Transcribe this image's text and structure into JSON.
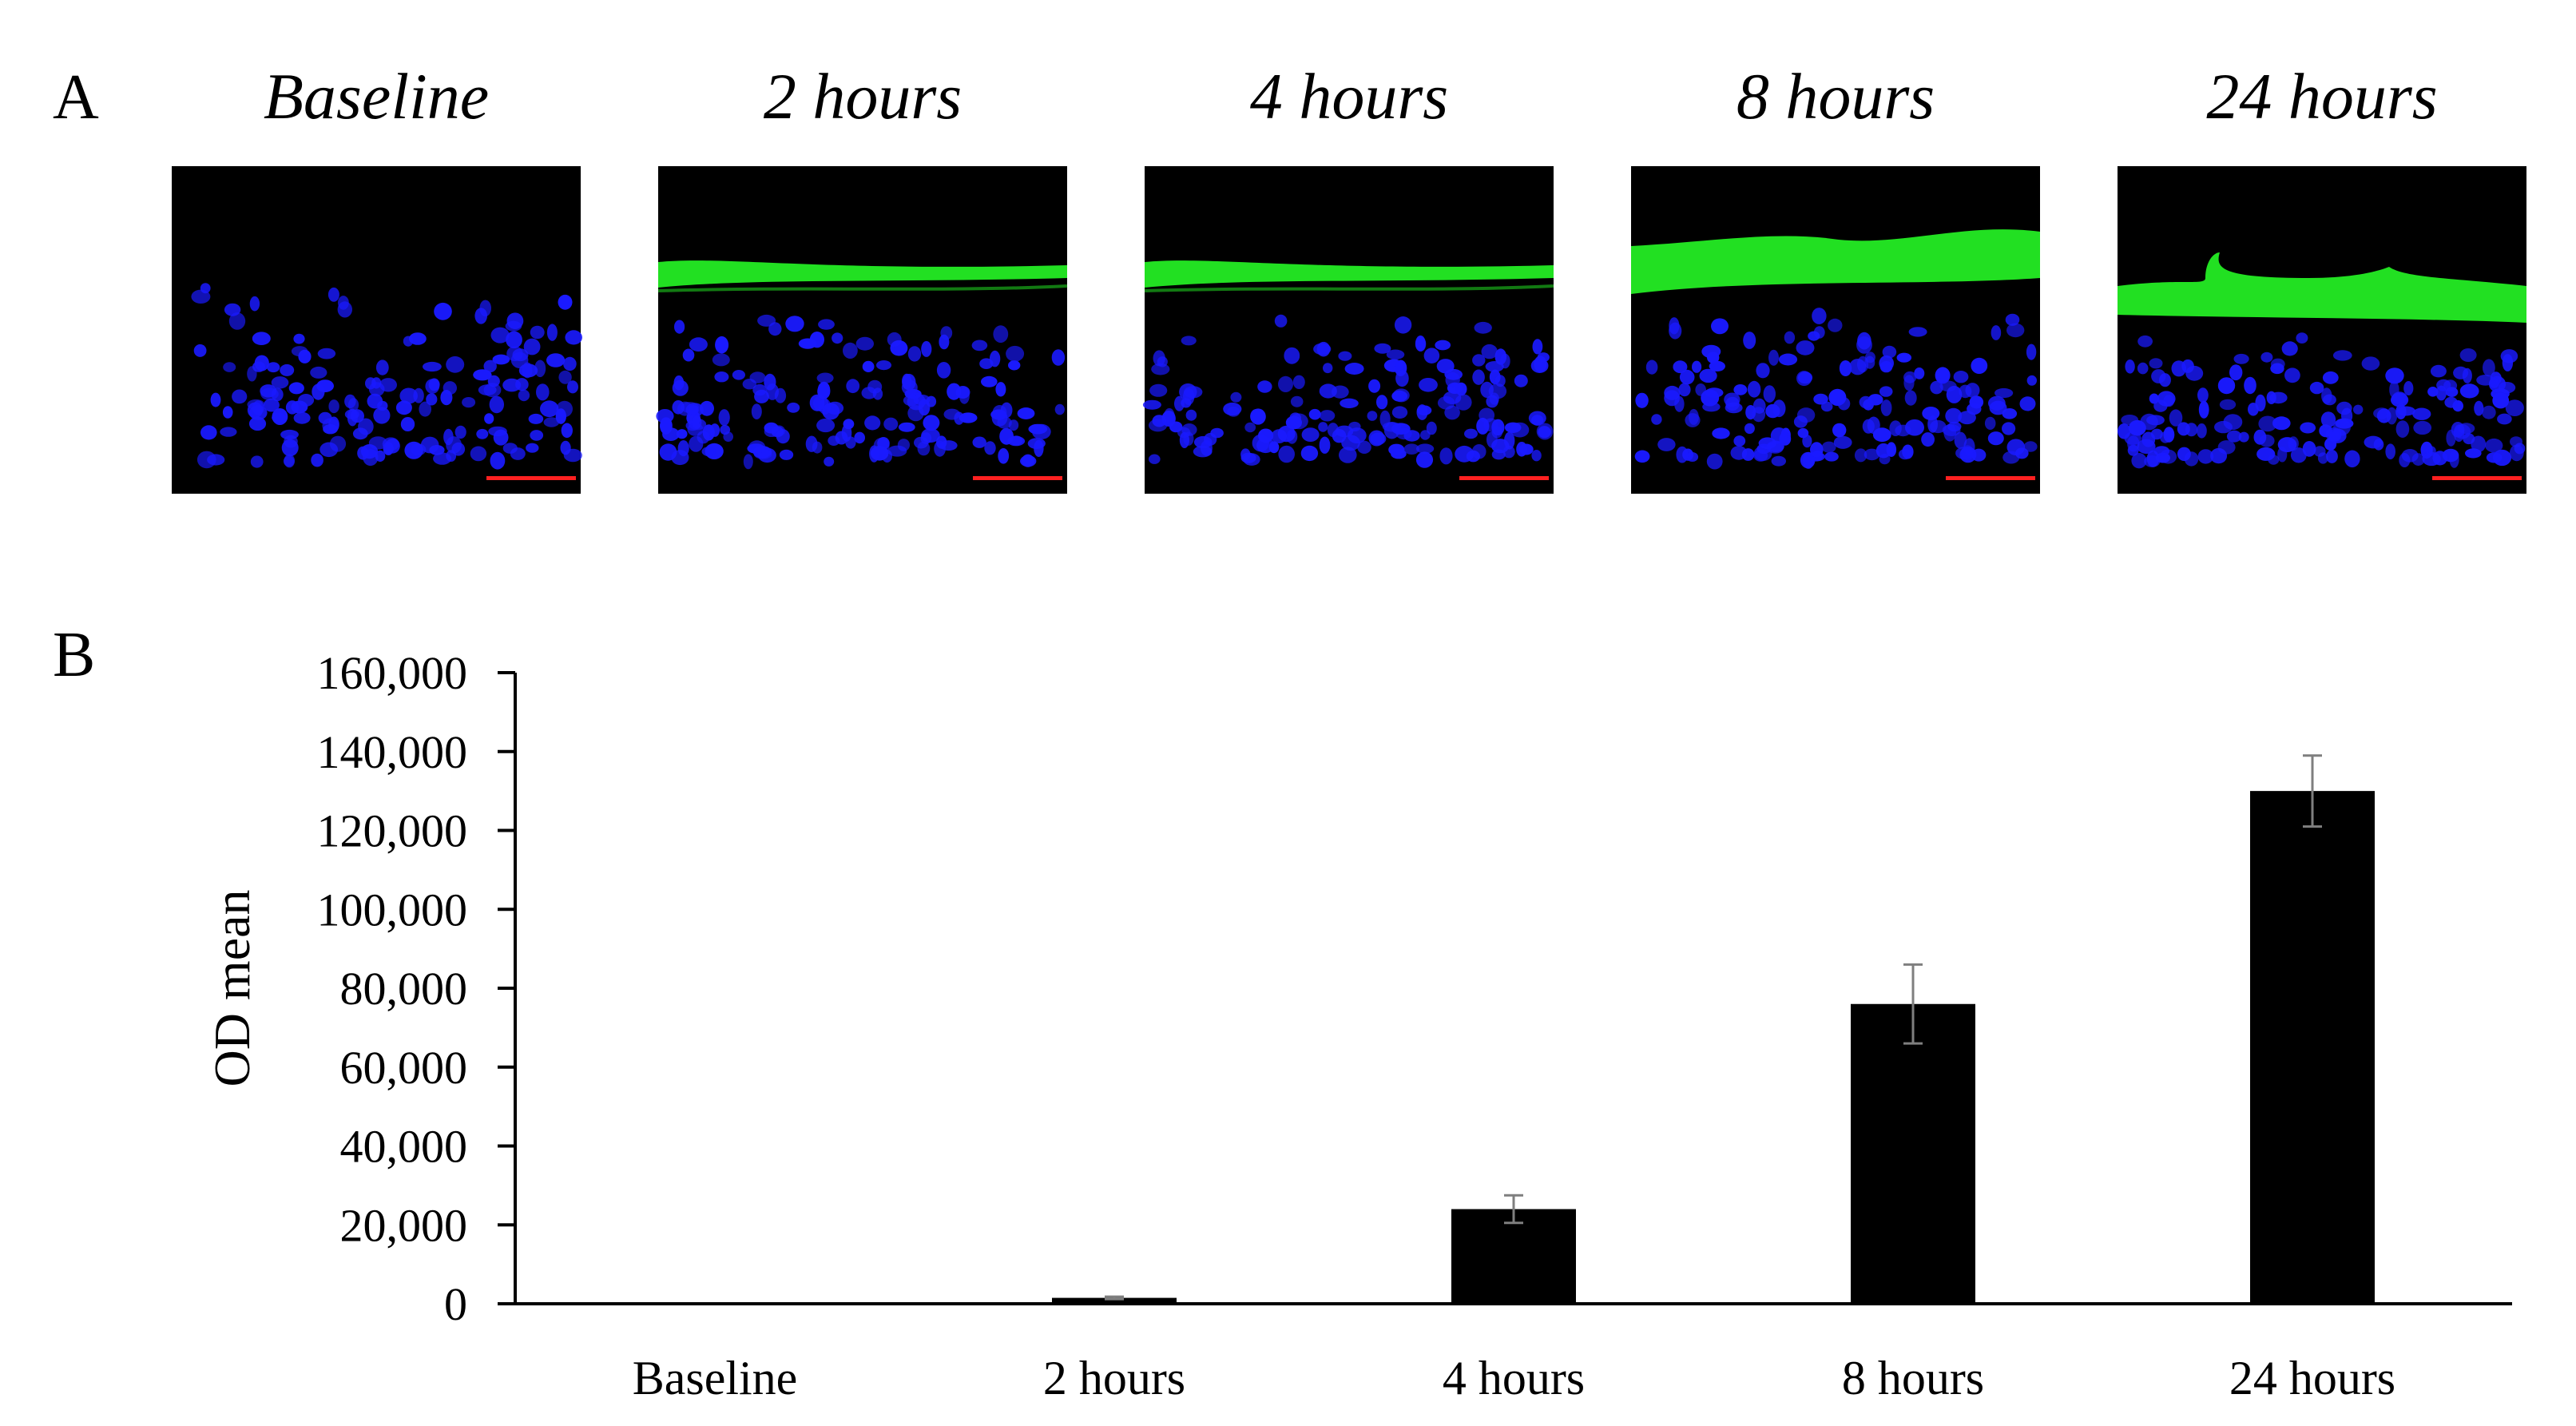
{
  "panel_a": {
    "letter": "A",
    "panels": [
      {
        "title": "Baseline",
        "band": "none",
        "nuclei_seed": 11
      },
      {
        "title": "2 hours",
        "band": "thin",
        "nuclei_seed": 23
      },
      {
        "title": "4 hours",
        "band": "thin",
        "nuclei_seed": 37
      },
      {
        "title": "8 hours",
        "band": "thick",
        "nuclei_seed": 51
      },
      {
        "title": "24 hours",
        "band": "thick-wavy",
        "nuclei_seed": 67
      }
    ],
    "colors": {
      "background": "#000000",
      "nuclei": "#1a1aff",
      "stain": "#22e022",
      "scale_bar": "#ff2020"
    }
  },
  "panel_b": {
    "letter": "B"
  },
  "chart_data": {
    "type": "bar",
    "categories": [
      "Baseline",
      "2 hours",
      "4 hours",
      "8 hours",
      "24 hours"
    ],
    "values": [
      0,
      1500,
      24000,
      76000,
      130000
    ],
    "errors": [
      0,
      300,
      3500,
      10000,
      9000
    ],
    "title": "",
    "xlabel": "",
    "ylabel": "OD mean",
    "ylim": [
      0,
      160000
    ],
    "yticks": [
      0,
      20000,
      40000,
      60000,
      80000,
      100000,
      120000,
      140000,
      160000
    ],
    "ytick_labels": [
      "0",
      "20,000",
      "40,000",
      "60,000",
      "80,000",
      "100,000",
      "120,000",
      "140,000",
      "160,000"
    ],
    "grid": false,
    "bar_color": "#000000",
    "error_bar_color": "#7f7f7f"
  }
}
